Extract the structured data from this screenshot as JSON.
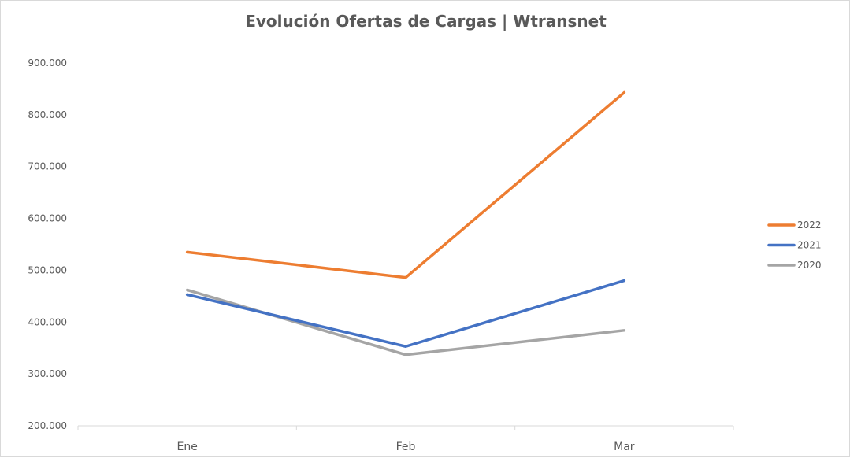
{
  "chart_data": {
    "type": "line",
    "title": "Evolución Ofertas de Cargas | Wtransnet",
    "categories": [
      "Ene",
      "Feb",
      "Mar"
    ],
    "series": [
      {
        "name": "2022",
        "color": "#ed7d31",
        "values": [
          535000,
          486000,
          843000
        ]
      },
      {
        "name": "2021",
        "color": "#4472c4",
        "values": [
          453000,
          353000,
          480000
        ]
      },
      {
        "name": "2020",
        "color": "#a5a5a5",
        "values": [
          462000,
          337000,
          384000
        ]
      }
    ],
    "ylim": [
      200000,
      900000
    ],
    "yticks": [
      200000,
      300000,
      400000,
      500000,
      600000,
      700000,
      800000,
      900000
    ],
    "ytick_labels": [
      "200.000",
      "300.000",
      "400.000",
      "500.000",
      "600.000",
      "700.000",
      "800.000",
      "900.000"
    ],
    "grid": false,
    "legend_position": "right",
    "xlabel": "",
    "ylabel": ""
  }
}
